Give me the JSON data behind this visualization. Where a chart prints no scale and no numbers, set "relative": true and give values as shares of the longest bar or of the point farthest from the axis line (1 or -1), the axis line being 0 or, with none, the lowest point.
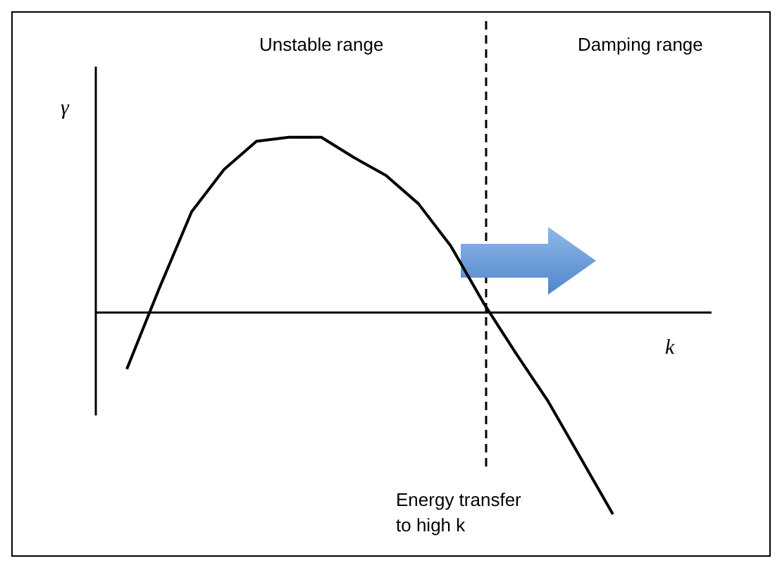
{
  "chart_data": {
    "type": "line",
    "relative": true,
    "legend": false,
    "marker": "none",
    "line_style": "solid",
    "xlabel": "k",
    "ylabel": "γ",
    "annotations": [
      "Unstable range",
      "Damping range",
      "Energy transfer to high k"
    ],
    "categories": [
      null,
      null,
      null,
      null,
      null,
      null,
      null,
      null,
      null,
      null,
      null,
      null,
      null,
      null,
      null,
      null
    ],
    "series": [
      {
        "color": "#000000",
        "values": [
          -0.28,
          0.12,
          0.5,
          0.71,
          0.85,
          0.87,
          0.87,
          0.77,
          0.68,
          0.54,
          0.33,
          0.05,
          -0.2,
          -0.44,
          -0.72,
          -1
        ]
      }
    ]
  }
}
